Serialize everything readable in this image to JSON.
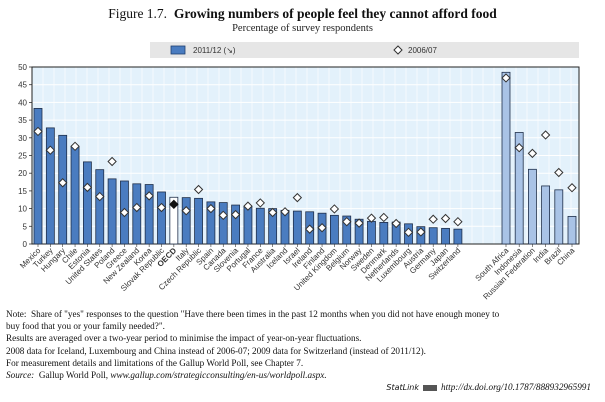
{
  "figure_label": "Figure 1.7.",
  "chart_data": {
    "type": "bar",
    "title": "Growing numbers of people feel they cannot afford food",
    "subtitle": "Percentage of survey respondents",
    "ylim": [
      0,
      50
    ],
    "yticks": [
      0,
      5,
      10,
      15,
      20,
      25,
      30,
      35,
      40,
      45,
      50
    ],
    "grid": true,
    "legend_position": "top",
    "categories": [
      "Mexico",
      "Turkey",
      "Hungary",
      "Chile",
      "Estonia",
      "United States",
      "Poland",
      "Greece",
      "New Zealand",
      "Korea",
      "Slovak Republic",
      "OECD",
      "Italy",
      "Czech Republic",
      "Spain",
      "Canada",
      "Slovenia",
      "Portugal",
      "France",
      "Australia",
      "Iceland",
      "Israel",
      "Ireland",
      "Finland",
      "United Kingdom",
      "Belgium",
      "Norway",
      "Sweden",
      "Denmark",
      "Netherlands",
      "Luxembourg",
      "Austria",
      "Germany",
      "Japan",
      "Switzerland",
      "South Africa",
      "Indonesia",
      "Russian Federation",
      "India",
      "Brazil",
      "China"
    ],
    "highlight_category": "OECD",
    "partner_categories": [
      "South Africa",
      "Indonesia",
      "Russian Federation",
      "India",
      "Brazil",
      "China"
    ],
    "series": [
      {
        "name": "2011/12 (↘)",
        "kind": "bar",
        "color": "#4a7cc0",
        "partner_color": "#a9c3e6",
        "values": [
          38.3,
          32.8,
          30.7,
          27.5,
          23.2,
          21.0,
          18.4,
          17.8,
          17.0,
          16.8,
          14.7,
          13.2,
          13.1,
          12.9,
          11.9,
          11.7,
          11.0,
          10.5,
          10.1,
          10.0,
          9.5,
          9.3,
          9.1,
          8.7,
          8.1,
          7.9,
          7.0,
          6.4,
          6.1,
          6.2,
          5.7,
          4.9,
          4.6,
          4.4,
          4.2,
          48.5,
          31.5,
          21.1,
          16.4,
          15.3,
          7.8
        ]
      },
      {
        "name": "2006/07",
        "kind": "diamond",
        "values": [
          31.8,
          26.5,
          17.3,
          27.6,
          16.0,
          13.4,
          23.3,
          8.9,
          10.3,
          13.6,
          10.3,
          11.2,
          9.4,
          15.4,
          10.0,
          8.1,
          8.3,
          10.7,
          11.6,
          8.9,
          9.1,
          13.1,
          4.2,
          4.6,
          9.9,
          6.3,
          5.9,
          7.3,
          7.5,
          5.8,
          3.3,
          3.4,
          7.0,
          7.2,
          6.3,
          46.9,
          27.2,
          25.6,
          30.8,
          20.2,
          15.9
        ]
      }
    ]
  },
  "notes": {
    "note_label": "Note:",
    "note_line1": "Share of \"yes\" responses to the question \"Have there been times in the past 12 months when you did not have enough money to",
    "note_line2": "buy food that you or your family needed?\".",
    "line3": "Results are averaged over a two-year period to minimise the impact of year-on-year fluctuations.",
    "line4": "2008 data for Iceland, Luxembourg and China instead of 2006-07; 2009 data for Switzerland (instead of 2011/12).",
    "line5": "For measurement details and limitations of the Gallup World Poll, see Chapter 7.",
    "source_label": "Source:",
    "source_text": "Gallup World Poll,",
    "source_url": "www.gallup.com/strategicconsulting/en-us/worldpoll.aspx."
  },
  "statlink": {
    "label": "StatLink",
    "url": "http://dx.doi.org/10.1787/888932965991"
  }
}
